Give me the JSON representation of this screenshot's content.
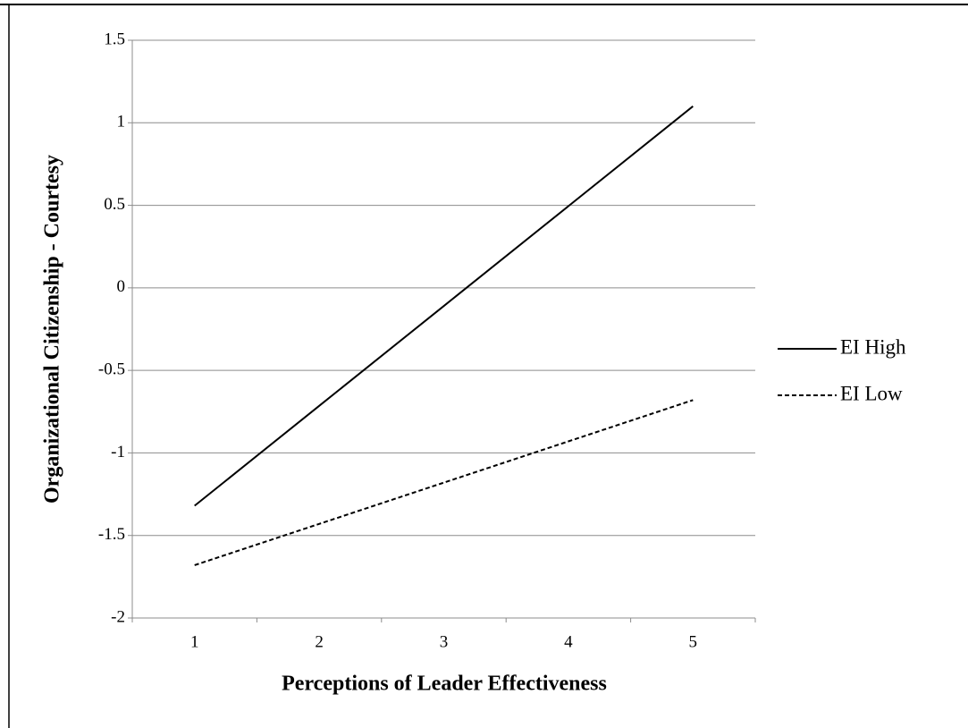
{
  "chart_data": {
    "type": "line",
    "x_label": "Perceptions of Leader Effectiveness",
    "y_label": "Organizational Citizenship - Courtesy",
    "categories": [
      "1",
      "2",
      "3",
      "4",
      "5"
    ],
    "series": [
      {
        "name": "EI High",
        "color": "#000000",
        "dashed": false,
        "values": [
          -1.32,
          -0.715,
          -0.11,
          0.495,
          1.1
        ]
      },
      {
        "name": "EI Low",
        "color": "#000000",
        "dashed": true,
        "values": [
          -1.68,
          -1.43,
          -1.18,
          -0.93,
          -0.68
        ]
      }
    ],
    "ylim": [
      -2,
      1.5
    ],
    "yticks": [
      -2,
      -1.5,
      -1,
      -0.5,
      0,
      0.5,
      1,
      1.5
    ],
    "grid": true,
    "legend": "right"
  }
}
